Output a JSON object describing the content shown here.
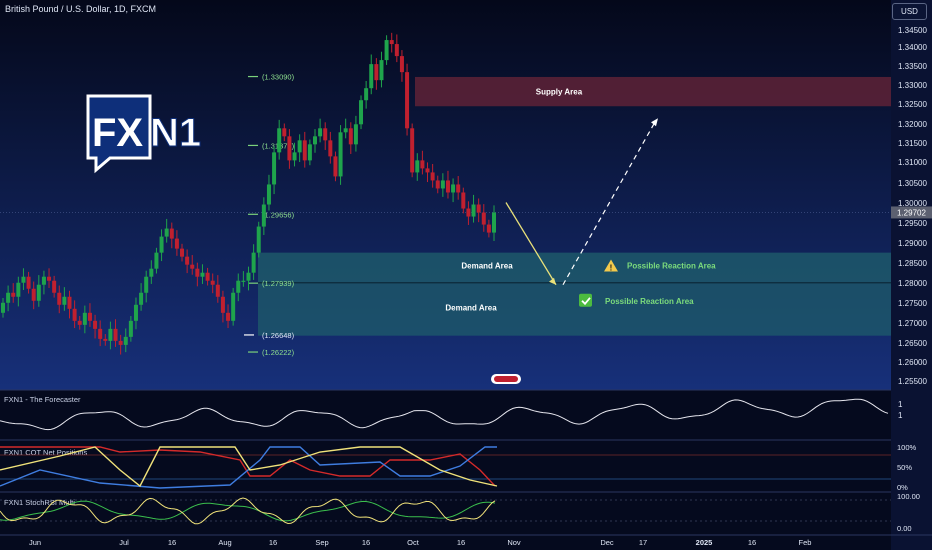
{
  "header": {
    "symbol_title": "British Pound / U.S. Dollar, 1D, FXCM",
    "currency_button": "USD"
  },
  "logo": {
    "part1": "FX",
    "part2": "N1"
  },
  "price_axis": {
    "ticks": [
      "1.34500",
      "1.34000",
      "1.33500",
      "1.33000",
      "1.32500",
      "1.32000",
      "1.31500",
      "1.31000",
      "1.30500",
      "1.30000",
      "1.29500",
      "1.29000",
      "1.28500",
      "1.28000",
      "1.27500",
      "1.27000",
      "1.26500",
      "1.26000",
      "1.25500"
    ],
    "current_price": "1.29702"
  },
  "fib_levels": [
    "(1.33090)",
    "(1.31373)",
    "(1.29656)",
    "(1.27939)",
    "(1.26648)",
    "(1.26222)"
  ],
  "zones": {
    "supply": "Supply Area",
    "demand_upper": "Demand Area",
    "demand_lower": "Demand Area",
    "reaction_1": "Possible Reaction Area",
    "reaction_2": "Possible Reaction Area"
  },
  "panels": {
    "forecaster": {
      "label": "FXN1 - The Forecaster",
      "ticks": [
        "1",
        "1"
      ]
    },
    "cot": {
      "label": "FXN1 COT Net Positions",
      "ticks": [
        "100%",
        "50%",
        "0%"
      ]
    },
    "stochrsi": {
      "label": "FXN1 StochRSI Multi",
      "ticks": [
        "100.00",
        "0.00"
      ]
    }
  },
  "time_axis": [
    "Jun",
    "Jul",
    "16",
    "Aug",
    "16",
    "Sep",
    "16",
    "Oct",
    "16",
    "Nov",
    "Dec",
    "17",
    "2025",
    "16",
    "Feb"
  ],
  "colors": {
    "background": "#0a1230",
    "bull": "#1fa44c",
    "bear": "#c0202f",
    "supply_zone": "#5a2136",
    "demand_zone": "#1f5e6b",
    "fib": "#7bd17b",
    "forecaster_line": "#e6e6ee",
    "cot_red": "#d42a2a",
    "cot_blue": "#3f7de0",
    "cot_yellow": "#f0e27a",
    "stoch_yellow": "#f0e27a",
    "stoch_green": "#3bbf4d"
  },
  "icons": [
    "warning-icon",
    "checkmark-icon",
    "collapse-handle-icon"
  ],
  "chart_data": {
    "type": "candlestick",
    "title": "British Pound / U.S. Dollar, 1D, FXCM",
    "y_axis_unit": "USD",
    "ylim": [
      1.253,
      1.347
    ],
    "x_labels": [
      "Jun",
      "Jul",
      "16",
      "Aug",
      "16",
      "Sep",
      "16",
      "Oct",
      "16",
      "Nov",
      "Dec",
      "17",
      "2025",
      "16",
      "Feb"
    ],
    "closes": [
      1.2745,
      1.277,
      1.276,
      1.2795,
      1.281,
      1.278,
      1.275,
      1.279,
      1.281,
      1.28,
      1.277,
      1.274,
      1.276,
      1.273,
      1.27,
      1.269,
      1.272,
      1.27,
      1.268,
      1.2655,
      1.265,
      1.268,
      1.265,
      1.264,
      1.266,
      1.27,
      1.274,
      1.277,
      1.281,
      1.283,
      1.287,
      1.291,
      1.293,
      1.2905,
      1.288,
      1.286,
      1.284,
      1.283,
      1.281,
      1.282,
      1.28,
      1.279,
      1.276,
      1.272,
      1.27,
      1.277,
      1.28,
      1.28,
      1.282,
      1.287,
      1.2935,
      1.299,
      1.304,
      1.312,
      1.318,
      1.316,
      1.31,
      1.312,
      1.315,
      1.31,
      1.314,
      1.316,
      1.318,
      1.315,
      1.311,
      1.306,
      1.317,
      1.318,
      1.314,
      1.319,
      1.325,
      1.328,
      1.334,
      1.33,
      1.335,
      1.34,
      1.339,
      1.336,
      1.332,
      1.318,
      1.307,
      1.31,
      1.308,
      1.307,
      1.305,
      1.303,
      1.305,
      1.302,
      1.304,
      1.302,
      1.298,
      1.296,
      1.299,
      1.297,
      1.294,
      1.292,
      1.297
    ],
    "fib_levels": [
      1.3309,
      1.31373,
      1.29656,
      1.27939,
      1.26648,
      1.26222
    ],
    "zones": [
      {
        "name": "Supply Area",
        "from": 1.3235,
        "to": 1.3308
      },
      {
        "name": "Demand Area",
        "from": 1.2795,
        "to": 1.287
      },
      {
        "name": "Demand Area",
        "from": 1.2663,
        "to": 1.2795
      }
    ],
    "projection": [
      {
        "leg": "down",
        "from": 1.2995,
        "to": 1.279
      },
      {
        "leg": "up",
        "from": 1.279,
        "to": 1.32
      }
    ]
  }
}
